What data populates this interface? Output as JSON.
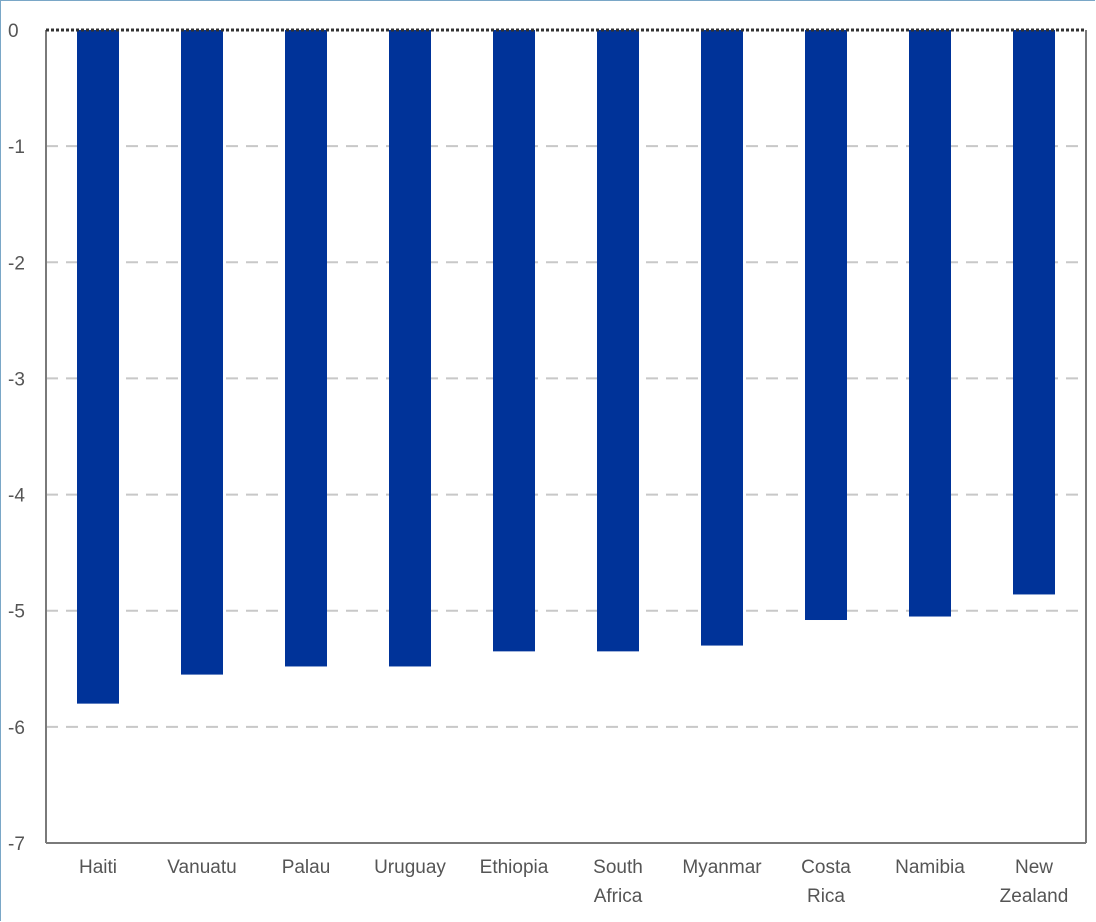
{
  "chart_data": {
    "type": "bar",
    "categories": [
      [
        "Haiti"
      ],
      [
        "Vanuatu"
      ],
      [
        "Palau"
      ],
      [
        "Uruguay"
      ],
      [
        "Ethiopia"
      ],
      [
        "South",
        "Africa"
      ],
      [
        "Myanmar"
      ],
      [
        "Costa",
        "Rica"
      ],
      [
        "Namibia"
      ],
      [
        "New",
        "Zealand"
      ]
    ],
    "values": [
      -5.8,
      -5.55,
      -5.48,
      -5.48,
      -5.35,
      -5.35,
      -5.3,
      -5.08,
      -5.05,
      -4.86
    ],
    "ylim": [
      -7,
      0
    ],
    "yticks": [
      "0",
      "-1",
      "-2",
      "-3",
      "-4",
      "-5",
      "-6",
      "-7"
    ],
    "ytick_values": [
      0,
      -1,
      -2,
      -3,
      -4,
      -5,
      -6,
      -7
    ],
    "grid": true,
    "bar_color": "#003399",
    "title": "",
    "xlabel": "",
    "ylabel": ""
  }
}
